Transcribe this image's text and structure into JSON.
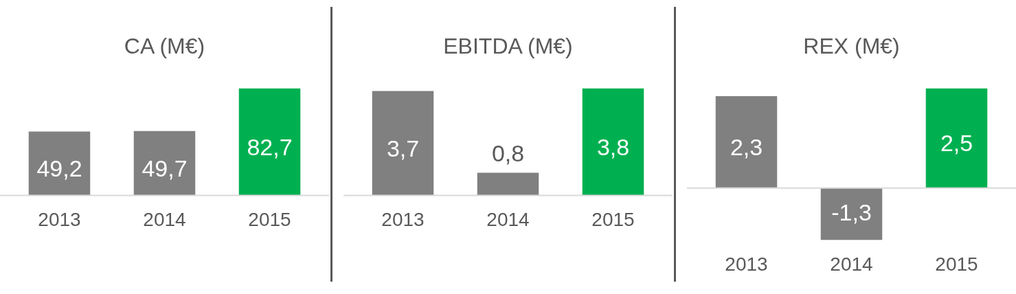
{
  "chart_data": [
    {
      "type": "bar",
      "title": "CA (M€)",
      "categories": [
        "2013",
        "2014",
        "2015"
      ],
      "values": [
        49.2,
        49.7,
        82.7
      ],
      "value_labels": [
        "49,2",
        "49,7",
        "82,7"
      ],
      "colors": [
        "#808080",
        "#808080",
        "#00b050"
      ],
      "grid": false,
      "legend": false,
      "tick_labels": "x"
    },
    {
      "type": "bar",
      "title": "EBITDA (M€)",
      "categories": [
        "2013",
        "2014",
        "2015"
      ],
      "values": [
        3.7,
        0.8,
        3.8
      ],
      "value_labels": [
        "3,7",
        "0,8",
        "3,8"
      ],
      "colors": [
        "#808080",
        "#808080",
        "#00b050"
      ],
      "grid": false,
      "legend": false,
      "tick_labels": "x"
    },
    {
      "type": "bar",
      "title": "REX (M€)",
      "categories": [
        "2013",
        "2014",
        "2015"
      ],
      "values": [
        2.3,
        -1.3,
        2.5
      ],
      "value_labels": [
        "2,3",
        "-1,3",
        "2,5"
      ],
      "colors": [
        "#808080",
        "#808080",
        "#00b050"
      ],
      "grid": false,
      "legend": false,
      "tick_labels": "x"
    }
  ]
}
